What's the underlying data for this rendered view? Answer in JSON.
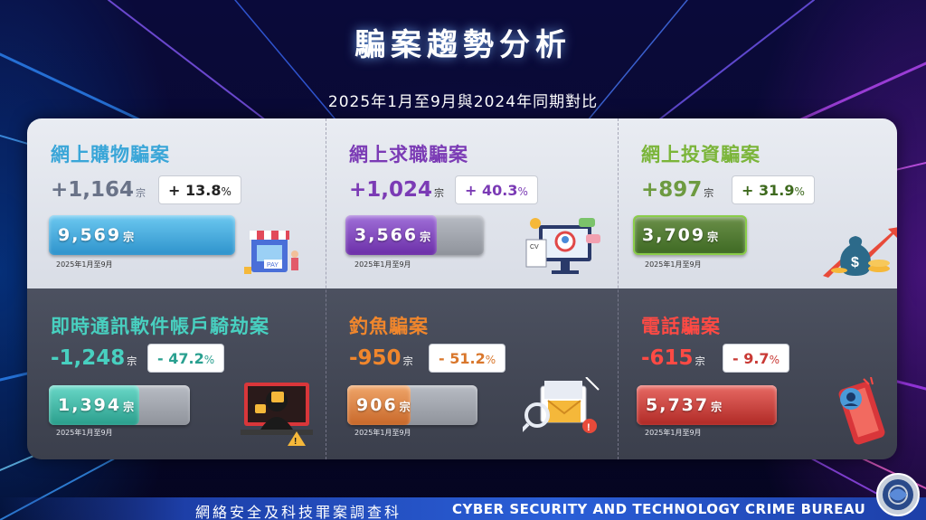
{
  "title": "騙案趨勢分析",
  "subtitle": "2025年1月至9月與2024年同期對比",
  "unit": "宗",
  "period_label": "2025年1月至9月",
  "footer": {
    "cn": "網絡安全及科技罪案調查科",
    "en": "CYBER SECURITY AND TECHNOLOGY CRIME BUREAU"
  },
  "colors": {
    "shopping": "#3aa6d8",
    "jobs": "#7b3bb5",
    "investment": "#5e8f2e",
    "messaging": "#3bb8a8",
    "phishing": "#d9772c",
    "phone": "#c93a35"
  },
  "cards": [
    {
      "key": "shopping",
      "name": "網上購物騙案",
      "delta": "+1,164",
      "pct_sign": "+",
      "pct": "13.8",
      "total": "9,569",
      "fill": 1.0,
      "icon": "online-shop-payment-icon"
    },
    {
      "key": "jobs",
      "name": "網上求職騙案",
      "delta": "+1,024",
      "pct_sign": "+",
      "pct": "40.3",
      "total": "3,566",
      "fill": 0.66,
      "icon": "cv-job-search-icon"
    },
    {
      "key": "investment",
      "name": "網上投資騙案",
      "delta": "+897",
      "pct_sign": "+",
      "pct": "31.9",
      "total": "3,709",
      "fill": 1.0,
      "icon": "money-bag-growth-icon"
    },
    {
      "key": "messaging",
      "name": "即時通訊軟件帳戶騎劫案",
      "delta": "-1,248",
      "pct_sign": "-",
      "pct": "47.2",
      "total": "1,394",
      "fill": 0.64,
      "icon": "hacker-laptop-icon"
    },
    {
      "key": "phishing",
      "name": "釣魚騙案",
      "delta": "-950",
      "pct_sign": "-",
      "pct": "51.2",
      "total": "906",
      "fill": 0.48,
      "icon": "phishing-email-icon"
    },
    {
      "key": "phone",
      "name": "電話騙案",
      "delta": "-615",
      "pct_sign": "-",
      "pct": "9.7",
      "total": "5,737",
      "fill": 1.0,
      "icon": "phone-scam-icon"
    }
  ]
}
